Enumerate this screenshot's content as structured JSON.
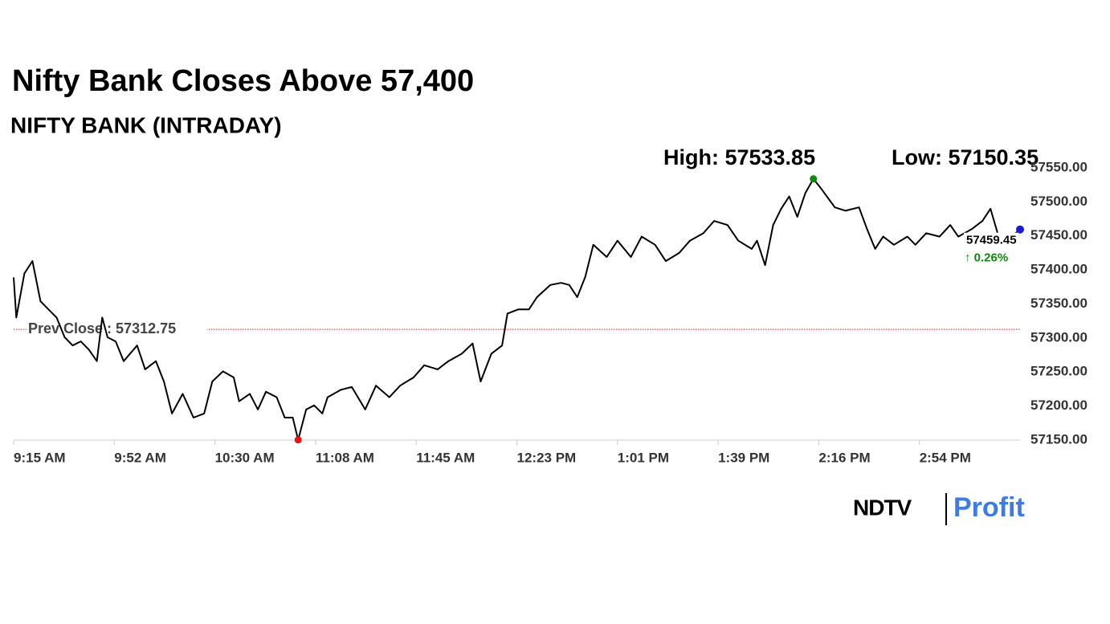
{
  "chart_data": {
    "type": "line",
    "title": "Nifty Bank Closes Above 57,400",
    "subtitle": "NIFTY BANK (INTRADAY)",
    "high_label": "High: 57533.85",
    "low_label": "Low: 57150.35",
    "high": 57533.85,
    "low": 57150.35,
    "prev_close": 57312.75,
    "prev_close_label": "Prev Close : 57312.75",
    "last_value_label": "57459.45",
    "change_label": "↑ 0.26%",
    "color": "#000000",
    "prev_close_color": "#e02020",
    "high_color": "#118811",
    "low_color": "#ee1111",
    "last_color": "#1a1ad0",
    "change_color": "#118811",
    "logo": [
      "NDTV",
      "Profit"
    ],
    "xlim": [
      555,
      930
    ],
    "xticks": [
      {
        "value": 555,
        "label": "9:15 AM"
      },
      {
        "value": 592.5,
        "label": "9:52 AM"
      },
      {
        "value": 630,
        "label": "10:30 AM"
      },
      {
        "value": 667.5,
        "label": "11:08 AM"
      },
      {
        "value": 705,
        "label": "11:45 AM"
      },
      {
        "value": 742.5,
        "label": "12:23 PM"
      },
      {
        "value": 780,
        "label": "1:01 PM"
      },
      {
        "value": 817.5,
        "label": "1:39 PM"
      },
      {
        "value": 855,
        "label": "2:16 PM"
      },
      {
        "value": 892.5,
        "label": "2:54 PM"
      }
    ],
    "ylim": [
      57150,
      57550
    ],
    "yticks": [
      {
        "value": 57150,
        "label": "57150.00"
      },
      {
        "value": 57200,
        "label": "57200.00"
      },
      {
        "value": 57250,
        "label": "57250.00"
      },
      {
        "value": 57300,
        "label": "57300.00"
      },
      {
        "value": 57350,
        "label": "57350.00"
      },
      {
        "value": 57400,
        "label": "57400.00"
      },
      {
        "value": 57450,
        "label": "57450.00"
      },
      {
        "value": 57500,
        "label": "57500.00"
      },
      {
        "value": 57550,
        "label": "57550.00"
      }
    ],
    "x": [
      555,
      556,
      559,
      562,
      565,
      568,
      571,
      574,
      577,
      580,
      583,
      586,
      588,
      590,
      593,
      596,
      601,
      604,
      608,
      611,
      614,
      618,
      622,
      626,
      629,
      633,
      637,
      639,
      643,
      646,
      649,
      653,
      656,
      659,
      661,
      664,
      667,
      670,
      672,
      677,
      681,
      686,
      690,
      695,
      699,
      704,
      708,
      713,
      717,
      722,
      726,
      729,
      733,
      737,
      739,
      743,
      747,
      750,
      755,
      759,
      762,
      765,
      768,
      771,
      776,
      780,
      785,
      789,
      794,
      798,
      803,
      807,
      812,
      816,
      821,
      825,
      830,
      832,
      835,
      838,
      841,
      844,
      847,
      850,
      853,
      856,
      861,
      865,
      870,
      873,
      876,
      879,
      883,
      888,
      891,
      895,
      900,
      904,
      907,
      912,
      916,
      919,
      922,
      925,
      930
    ],
    "values": [
      57389,
      57330,
      57395,
      57413,
      57354,
      57342,
      57330,
      57301,
      57289,
      57295,
      57283,
      57266,
      57330,
      57301,
      57295,
      57266,
      57289,
      57254,
      57266,
      57236,
      57189,
      57218,
      57183,
      57189,
      57236,
      57251,
      57242,
      57207,
      57218,
      57195,
      57221,
      57213,
      57183,
      57183,
      57150.35,
      57195,
      57201,
      57189,
      57213,
      57224,
      57228,
      57195,
      57230,
      57213,
      57230,
      57242,
      57260,
      57254,
      57266,
      57277,
      57292,
      57236,
      57277,
      57289,
      57336,
      57342,
      57342,
      57360,
      57378,
      57381,
      57378,
      57360,
      57390,
      57437,
      57419,
      57443,
      57419,
      57449,
      57437,
      57413,
      57425,
      57443,
      57454,
      57472,
      57466,
      57443,
      57431,
      57443,
      57407,
      57466,
      57490,
      57508,
      57478,
      57513,
      57533.85,
      57519,
      57492,
      57487,
      57492,
      57460,
      57431,
      57449,
      57437,
      57449,
      57437,
      57454,
      57449,
      57466,
      57449,
      57460,
      57472,
      57490,
      57449,
      57443,
      57459.45
    ]
  }
}
